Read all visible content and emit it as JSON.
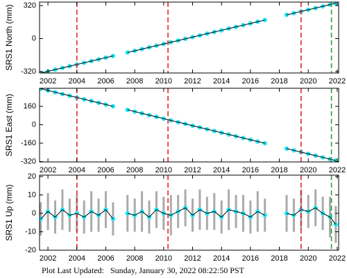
{
  "chart_data": [
    {
      "type": "scatter",
      "ylabel": "SRS1 North (mm)",
      "x": [
        2001.5,
        2002,
        2002.5,
        2003,
        2003.5,
        2004,
        2004.5,
        2005,
        2005.5,
        2006,
        2006.5,
        2007,
        2007.5,
        2008,
        2008.5,
        2009,
        2009.5,
        2010,
        2010.5,
        2011,
        2011.5,
        2012,
        2012.5,
        2013,
        2013.5,
        2014,
        2014.5,
        2015,
        2015.5,
        2016,
        2016.5,
        2017,
        2017.5,
        2018,
        2018.5,
        2019,
        2019.5,
        2020,
        2020.5,
        2021,
        2021.5,
        2021.9
      ],
      "values": [
        -334.6,
        -318,
        -301.4,
        -284.8,
        -268.2,
        -251.6,
        -235,
        -218.4,
        -201.8,
        -185.2,
        -168.6,
        null,
        -135.4,
        -118.8,
        -102.2,
        -85.6,
        -69,
        -52.4,
        -35.8,
        -19.2,
        -2.6,
        14,
        30.6,
        47.2,
        63.8,
        80.4,
        97,
        113.6,
        130.2,
        146.8,
        163.4,
        180,
        null,
        null,
        229.8,
        246.4,
        263,
        279.6,
        296.2,
        312.8,
        329.4,
        342.7
      ],
      "color": "#22e5f5",
      "line_color": "#000000",
      "xlim": [
        2001.42,
        2022.1
      ],
      "xticks": [
        2002,
        2004,
        2006,
        2008,
        2010,
        2012,
        2014,
        2016,
        2018,
        2020,
        2022
      ],
      "ylim": [
        -334,
        354
      ],
      "yticks": [
        -320,
        0,
        320
      ],
      "vlines": [
        {
          "x": 2004.0,
          "color": "#e8212b"
        },
        {
          "x": 2010.3,
          "color": "#e8212b"
        },
        {
          "x": 2019.5,
          "color": "#e8212b"
        },
        {
          "x": 2021.6,
          "color": "#2ca02c"
        }
      ]
    },
    {
      "type": "scatter",
      "ylabel": "SRS1 East (mm)",
      "x": [
        2001.5,
        2002,
        2002.5,
        2003,
        2003.5,
        2004,
        2004.5,
        2005,
        2005.5,
        2006,
        2006.5,
        2007,
        2007.5,
        2008,
        2008.5,
        2009,
        2009.5,
        2010,
        2010.5,
        2011,
        2011.5,
        2012,
        2012.5,
        2013,
        2013.5,
        2014,
        2014.5,
        2015,
        2015.5,
        2016,
        2016.5,
        2017,
        2017.5,
        2018,
        2018.5,
        2019,
        2019.5,
        2020,
        2020.5,
        2021,
        2021.5,
        2021.9
      ],
      "values": [
        313.3,
        298,
        282.7,
        267.4,
        252.1,
        236.8,
        221.5,
        206.2,
        190.9,
        175.6,
        160.3,
        null,
        129.7,
        114.4,
        99.1,
        83.8,
        68.5,
        53.2,
        37.9,
        22.6,
        7.3,
        -8,
        -23.3,
        -38.6,
        -53.9,
        -69.2,
        -84.5,
        -99.8,
        -115.1,
        -130.4,
        -145.7,
        -161,
        null,
        null,
        -206.9,
        -222.2,
        -237.5,
        -252.8,
        -268.1,
        -283.4,
        -298.7,
        -310.9
      ],
      "color": "#22e5f5",
      "line_color": "#000000",
      "xlim": [
        2001.42,
        2022.1
      ],
      "xticks": [
        2002,
        2004,
        2006,
        2008,
        2010,
        2012,
        2014,
        2016,
        2018,
        2020,
        2022
      ],
      "ylim": [
        -323,
        317
      ],
      "yticks": [
        -320,
        -160,
        0,
        160
      ],
      "vlines": [
        {
          "x": 2004.0,
          "color": "#e8212b"
        },
        {
          "x": 2010.3,
          "color": "#e8212b"
        },
        {
          "x": 2019.5,
          "color": "#e8212b"
        },
        {
          "x": 2021.6,
          "color": "#2ca02c"
        }
      ]
    },
    {
      "type": "scatter",
      "ylabel": "SRS1 Up (mm)",
      "x": [
        2001.5,
        2002,
        2002.5,
        2003,
        2003.5,
        2004,
        2004.5,
        2005,
        2005.5,
        2006,
        2006.5,
        2007,
        2007.5,
        2008,
        2008.5,
        2009,
        2009.5,
        2010,
        2010.5,
        2011,
        2011.5,
        2012,
        2012.5,
        2013,
        2013.5,
        2014,
        2014.5,
        2015,
        2015.5,
        2016,
        2016.5,
        2017,
        2017.5,
        2018,
        2018.5,
        2019,
        2019.5,
        2020,
        2020.5,
        2021,
        2021.5,
        2021.9
      ],
      "values": [
        -3,
        1,
        -2,
        2,
        -1,
        0,
        -2,
        1,
        -1,
        2,
        -3,
        null,
        0,
        -1,
        1,
        -2,
        2,
        0,
        -1,
        1,
        3,
        -1,
        2,
        0,
        1,
        -2,
        2,
        1,
        0,
        -2,
        1,
        -1,
        null,
        null,
        0,
        -1,
        2,
        1,
        3,
        0,
        -2,
        -6
      ],
      "errors": [
        9,
        10,
        9,
        11,
        9,
        10,
        9,
        11,
        9,
        10,
        9,
        null,
        10,
        9,
        11,
        9,
        10,
        9,
        11,
        9,
        10,
        9,
        11,
        9,
        10,
        9,
        11,
        9,
        10,
        9,
        11,
        9,
        null,
        null,
        10,
        9,
        11,
        9,
        10,
        9,
        11,
        10
      ],
      "color": "#22e5f5",
      "line_color": "#000000",
      "error_color": "#aaaaaa",
      "xlim": [
        2001.42,
        2022.1
      ],
      "xticks": [
        2002,
        2004,
        2006,
        2008,
        2010,
        2012,
        2014,
        2016,
        2018,
        2020,
        2022
      ],
      "ylim": [
        -20,
        20.75
      ],
      "yticks": [
        -20,
        -10,
        0,
        10,
        20
      ],
      "vlines": [
        {
          "x": 2004.0,
          "color": "#e8212b"
        },
        {
          "x": 2010.3,
          "color": "#e8212b"
        },
        {
          "x": 2019.5,
          "color": "#e8212b"
        },
        {
          "x": 2021.6,
          "color": "#2ca02c"
        }
      ]
    }
  ],
  "footer": "Plot Last Updated:   Sunday, January 30, 2022 08:22:50 PST"
}
